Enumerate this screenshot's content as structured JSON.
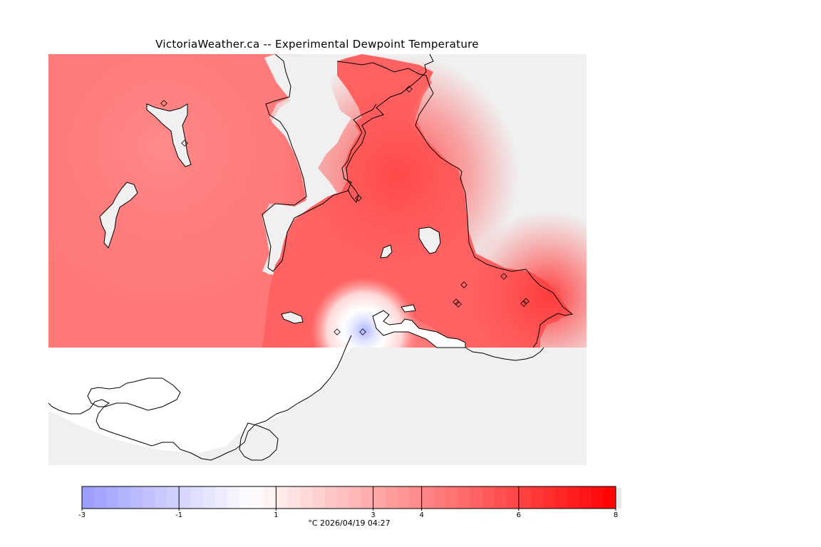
{
  "title": "VictoriaWeather.ca -- Experimental Dewpoint Temperature",
  "colors": {
    "land_bg": "#f0f0f0",
    "water": "#ffffff",
    "cold": "#9a9aff",
    "neutral": "#ffffff",
    "warm": "#ff0000",
    "coastline": "#000000"
  },
  "colorbar": {
    "min": -3,
    "max": 8,
    "ticks": [
      "-3",
      "-1",
      "1",
      "3",
      "4",
      "6",
      "8"
    ],
    "caption": "°C  2026/04/19 04:27"
  },
  "stations_count": 12
}
